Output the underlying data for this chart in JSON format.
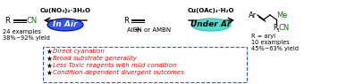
{
  "fig_width": 3.78,
  "fig_height": 0.95,
  "dpi": 100,
  "bg_color": "#ffffff",
  "left_product": {
    "R_text": "R",
    "triple_bond_color": "#000000",
    "CN_color": "#008000",
    "CN_text": "CN"
  },
  "center_reagent": {
    "R_text": "R",
    "plus_text": "+",
    "AIBN_text": "AIBN or AMBN"
  },
  "right_product": {
    "Ar_text": "Ar",
    "Me_color": "#008000",
    "Me_text": "Me",
    "CN_color": "#008000",
    "CN_text": "CN"
  },
  "left_catalyst": {
    "text": "Cu(NO₃)₂·3H₂O"
  },
  "right_catalyst": {
    "text": "Cu(OAc)₂·H₂O"
  },
  "left_oval": {
    "text": "In Air",
    "text_color": "#ffffff",
    "fill_color": "#3355ee",
    "edge_color": "#0000aa"
  },
  "right_oval": {
    "text": "Under Ar",
    "text_color": "#000000",
    "fill_color": "#55ddcc",
    "edge_color": "#33bbaa"
  },
  "left_stats": {
    "line1": "24 examples",
    "line2": "38%~92% yield"
  },
  "right_stats": {
    "line1": "R = aryl",
    "line2": "10 examples",
    "line3": "45%~63% yield"
  },
  "bullet_box": {
    "border_color": "#3355ee",
    "points": [
      "Direct cyanation",
      "Broad substrate generality",
      "Less Toxic reagents with mild condition",
      "Condition-dependent divergent outcomes"
    ],
    "text_color": "#ff0000"
  }
}
